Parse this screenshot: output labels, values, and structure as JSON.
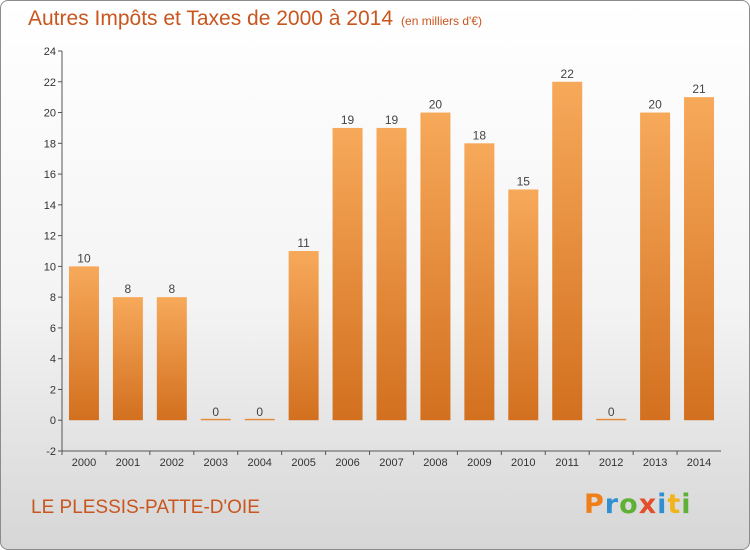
{
  "chart_data": {
    "type": "bar",
    "title": "Autres Impôts et Taxes de 2000 à 2014",
    "subtitle": "(en milliers d'€)",
    "categories": [
      "2000",
      "2001",
      "2002",
      "2003",
      "2004",
      "2005",
      "2006",
      "2007",
      "2008",
      "2009",
      "2010",
      "2011",
      "2012",
      "2013",
      "2014"
    ],
    "values": [
      10,
      8,
      8,
      0,
      0,
      11,
      19,
      19,
      20,
      18,
      15,
      22,
      0,
      20,
      21
    ],
    "data_labels": [
      "10",
      "8",
      "8",
      "0",
      "0",
      "11",
      "19",
      "19",
      "20",
      "18",
      "15",
      "22",
      "0",
      "20",
      "21"
    ],
    "ylim": [
      -2,
      24
    ],
    "yticks": [
      -2,
      0,
      2,
      4,
      6,
      8,
      10,
      12,
      14,
      16,
      18,
      20,
      22,
      24
    ],
    "grid": false,
    "bar_color": "#f19a45",
    "bar_color_dark": "#d2701f"
  },
  "footer": {
    "location": "LE PLESSIS-PATTE-D'OIE"
  },
  "logo": {
    "text": "Proxiti",
    "colors": [
      "#f07f1a",
      "#2f8fd0",
      "#5fb036",
      "#e24f2a",
      "#2f8fd0",
      "#f1b51c",
      "#5fb036"
    ]
  }
}
